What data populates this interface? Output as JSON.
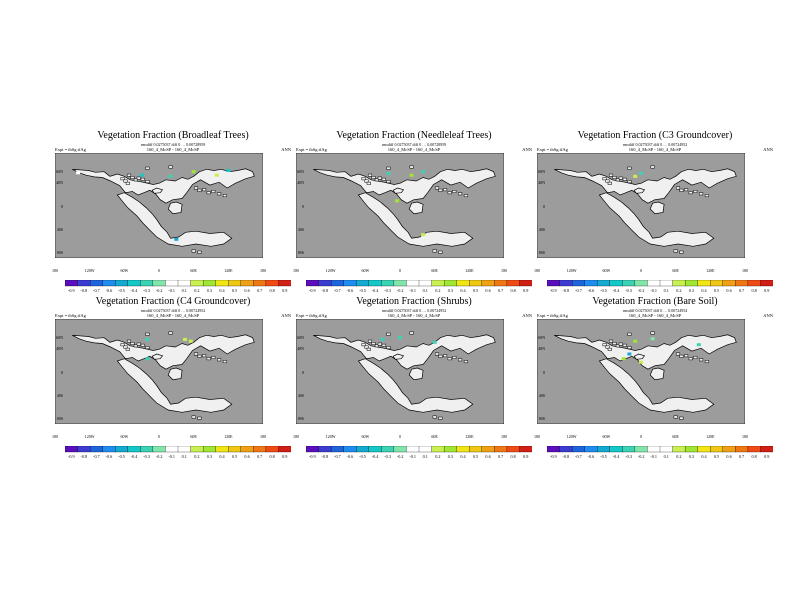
{
  "shared": {
    "expt_label": "Expt = tbSg.tfAg",
    "runs_label": "160_4_McSP - 160_4_McSP",
    "season": "ANN",
    "lon_ticks": [
      "180",
      "120W",
      "60W",
      "0",
      "60E",
      "120E",
      "180"
    ],
    "lat_ticks": [
      "60N",
      "40N",
      "0",
      "40S",
      "80S"
    ]
  },
  "colorbar": {
    "labels": [
      "-0.9",
      "-0.8",
      "-0.7",
      "-0.6",
      "-0.5",
      "-0.4",
      "-0.3",
      "-0.2",
      "-0.1",
      "0.1",
      "0.2",
      "0.3",
      "0.4",
      "0.5",
      "0.6",
      "0.7",
      "0.8",
      "0.9"
    ],
    "colors": [
      "#5a0fbe",
      "#3c3cd2",
      "#1e64dc",
      "#1e8cf0",
      "#14aad2",
      "#14c8c8",
      "#3cd2b4",
      "#82e6aa",
      "#ffffff",
      "#ffffff",
      "#c8f050",
      "#a0e632",
      "#f0e614",
      "#f0c814",
      "#f0a014",
      "#f07814",
      "#f04b14",
      "#d21e14"
    ]
  },
  "map_colors": {
    "ocean": "#9c9c9c",
    "land": "#f0f0f0",
    "outline": "#000000"
  },
  "chart_data": [
    {
      "type": "heatmap",
      "title": "Vegetation Fraction (Broadleaf Trees)",
      "stats": "rmsdiff 0.0275037 diff 0 … 0.00728959",
      "xlabel": "",
      "ylabel": "",
      "xlim": [
        -180,
        180
      ],
      "ylim": [
        -90,
        90
      ],
      "color_range": [
        -0.9,
        0.9
      ],
      "notable_cells": [
        {
          "lon": -140,
          "lat": 56,
          "value": 0.1
        },
        {
          "lon": -30,
          "lat": 52,
          "value": -0.4
        },
        {
          "lon": 20,
          "lat": 50,
          "value": -0.3
        },
        {
          "lon": 60,
          "lat": 58,
          "value": 0.3
        },
        {
          "lon": 120,
          "lat": 60,
          "value": -0.4
        },
        {
          "lon": 100,
          "lat": 52,
          "value": 0.2
        },
        {
          "lon": 30,
          "lat": -58,
          "value": -0.5
        }
      ]
    },
    {
      "type": "heatmap",
      "title": "Vegetation Fraction (Needleleaf Trees)",
      "stats": "rmsdiff 0.0275037 diff 0 … 0.00728959",
      "xlabel": "",
      "ylabel": "",
      "xlim": [
        -180,
        180
      ],
      "ylim": [
        -90,
        90
      ],
      "color_range": [
        -0.9,
        0.9
      ],
      "notable_cells": [
        {
          "lon": -20,
          "lat": 55,
          "value": -0.3
        },
        {
          "lon": 20,
          "lat": 52,
          "value": 0.3
        },
        {
          "lon": 40,
          "lat": 58,
          "value": -0.3
        },
        {
          "lon": -5,
          "lat": 8,
          "value": 0.3
        },
        {
          "lon": 40,
          "lat": -50,
          "value": 0.2
        }
      ]
    },
    {
      "type": "heatmap",
      "title": "Vegetation Fraction (C3 Groundcover)",
      "stats": "rmsdiff 0.0275037 diff 0 … 0.00724952",
      "xlabel": "",
      "ylabel": "",
      "xlim": [
        -180,
        180
      ],
      "ylim": [
        -90,
        90
      ],
      "color_range": [
        -0.9,
        0.9
      ],
      "notable_cells": [
        {
          "lon": 0,
          "lat": 55,
          "value": -0.3
        },
        {
          "lon": -10,
          "lat": 50,
          "value": 0.2
        }
      ]
    },
    {
      "type": "heatmap",
      "title": "Vegetation Fraction (C4 Groundcover)",
      "stats": "rmsdiff 0.0275037 diff 0 … 0.00724952",
      "xlabel": "",
      "ylabel": "",
      "xlim": [
        -180,
        180
      ],
      "ylim": [
        -90,
        90
      ],
      "color_range": [
        -0.9,
        0.9
      ],
      "notable_cells": [
        {
          "lon": -20,
          "lat": 55,
          "value": -0.3
        },
        {
          "lon": 45,
          "lat": 55,
          "value": 0.2
        },
        {
          "lon": 55,
          "lat": 52,
          "value": 0.2
        },
        {
          "lon": -20,
          "lat": 22,
          "value": -0.3
        }
      ]
    },
    {
      "type": "heatmap",
      "title": "Vegetation Fraction (Shrubs)",
      "stats": "rmsdiff 0.0275037 diff 0 … 0.00724952",
      "xlabel": "",
      "ylabel": "",
      "xlim": [
        -180,
        180
      ],
      "ylim": [
        -90,
        90
      ],
      "color_range": [
        -0.9,
        0.9
      ],
      "notable_cells": [
        {
          "lon": -30,
          "lat": 55,
          "value": -0.3
        },
        {
          "lon": 0,
          "lat": 58,
          "value": -0.3
        },
        {
          "lon": 60,
          "lat": 50,
          "value": -0.3
        }
      ]
    },
    {
      "type": "heatmap",
      "title": "Vegetation Fraction (Bare Soil)",
      "stats": "rmsdiff 0.0275037 diff 0 … 0.00724954",
      "xlabel": "",
      "ylabel": "",
      "xlim": [
        -180,
        180
      ],
      "ylim": [
        -90,
        90
      ],
      "color_range": [
        -0.9,
        0.9
      ],
      "notable_cells": [
        {
          "lon": -10,
          "lat": 52,
          "value": 0.3
        },
        {
          "lon": 20,
          "lat": 56,
          "value": -0.2
        },
        {
          "lon": 100,
          "lat": 46,
          "value": -0.3
        },
        {
          "lon": -30,
          "lat": 22,
          "value": 0.3
        },
        {
          "lon": -20,
          "lat": 30,
          "value": -0.5
        },
        {
          "lon": 0,
          "lat": 16,
          "value": 0.2
        }
      ]
    }
  ]
}
